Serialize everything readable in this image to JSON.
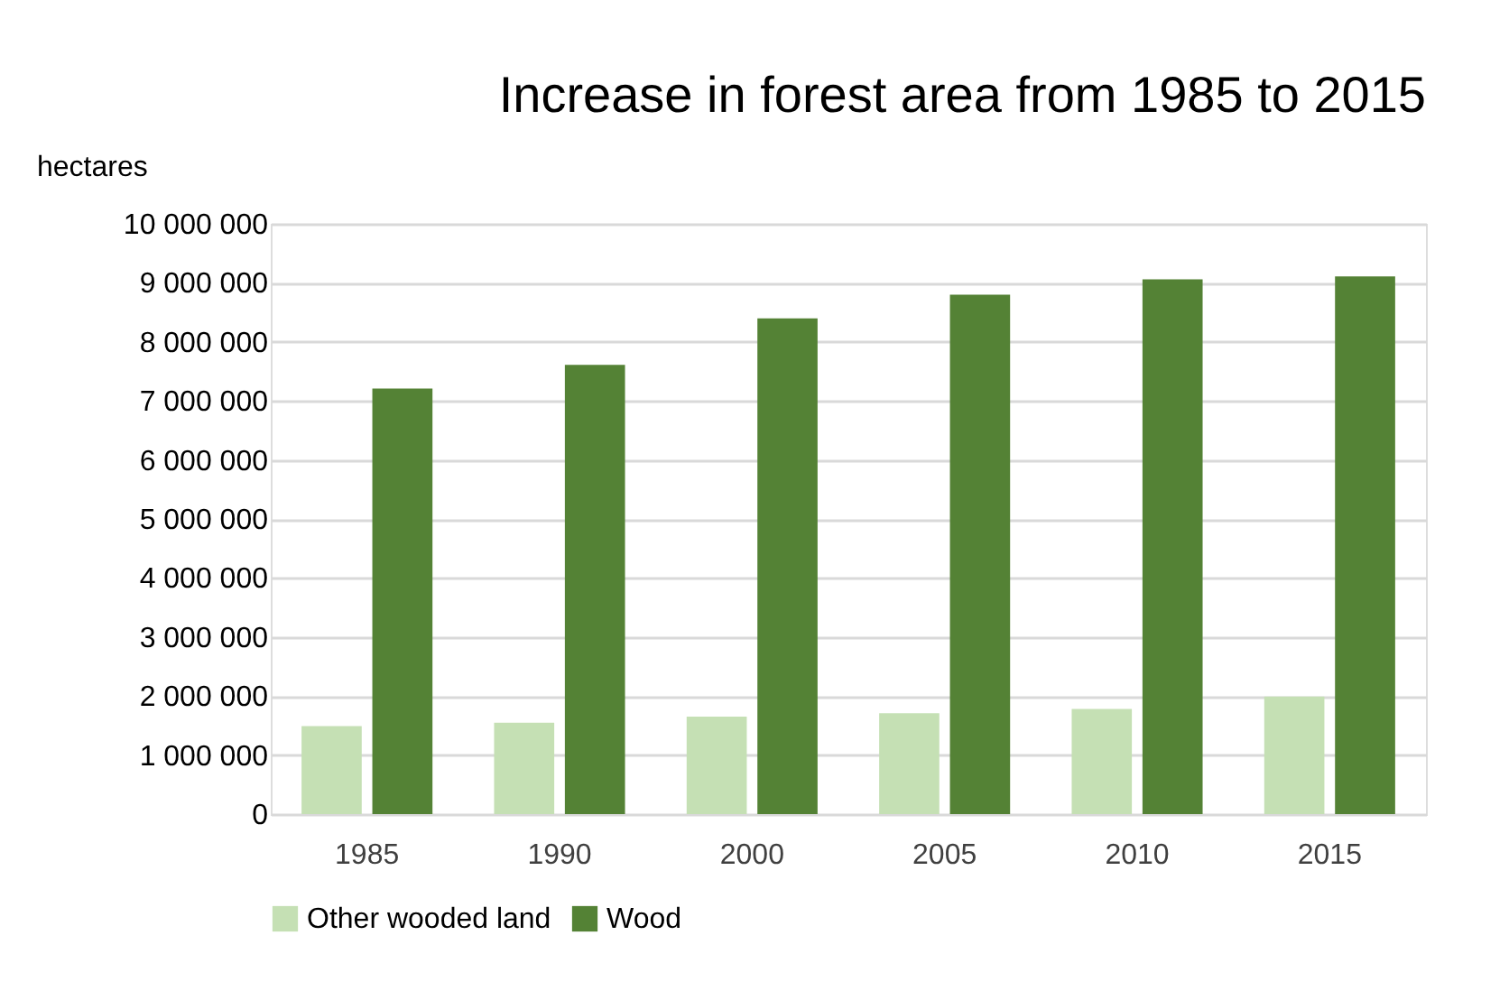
{
  "chart_data": {
    "type": "bar",
    "title": "Increase in forest area from 1985 to  2015",
    "ylabel": "hectares",
    "categories": [
      "1985",
      "1990",
      "2000",
      "2005",
      "2010",
      "2015"
    ],
    "series": [
      {
        "name": "Other wooded land",
        "color": "#c5e0b4",
        "values": [
          1490000,
          1550000,
          1650000,
          1710000,
          1780000,
          1990000
        ]
      },
      {
        "name": "Wood",
        "color": "#548235",
        "values": [
          7210000,
          7610000,
          8400000,
          8800000,
          9060000,
          9110000
        ]
      }
    ],
    "ylim": [
      0,
      10000000
    ],
    "yticks": [
      {
        "value": 0,
        "label": "0"
      },
      {
        "value": 1000000,
        "label": "1 000 000"
      },
      {
        "value": 2000000,
        "label": "2 000 000"
      },
      {
        "value": 3000000,
        "label": "3 000 000"
      },
      {
        "value": 4000000,
        "label": "4 000 000"
      },
      {
        "value": 5000000,
        "label": "5 000 000"
      },
      {
        "value": 6000000,
        "label": "6 000 000"
      },
      {
        "value": 7000000,
        "label": "7 000 000"
      },
      {
        "value": 8000000,
        "label": "8 000 000"
      },
      {
        "value": 9000000,
        "label": "9 000 000"
      },
      {
        "value": 10000000,
        "label": "10 000 000"
      }
    ],
    "grid": "y",
    "legend": "bottom"
  }
}
